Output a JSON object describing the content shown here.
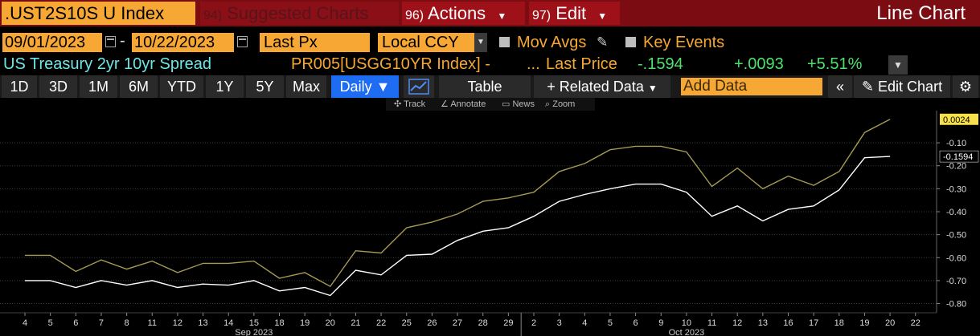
{
  "header": {
    "ticker": ".UST2S10S U Index",
    "suggested": {
      "num": "94)",
      "label": "Suggested Charts"
    },
    "actions": {
      "num": "96)",
      "label": "Actions"
    },
    "edit": {
      "num": "97)",
      "label": "Edit"
    },
    "chart_type": "Line Chart"
  },
  "range": {
    "start_date": "09/01/2023",
    "end_date": "10/22/2023",
    "field": "Last Px",
    "currency": "Local CCY",
    "mov_avgs": "Mov Avgs",
    "key_events": "Key Events"
  },
  "security": {
    "name": "US Treasury 2yr 10yr Spread",
    "series2": "PR005[USGG10YR Index] -",
    "ellipsis": "...",
    "last_price_label": "Last Price",
    "last_value": "-.1594",
    "change": "+.0093",
    "change_pct": "+5.51%"
  },
  "toolbar": {
    "periods": [
      "1D",
      "3D",
      "1M",
      "6M",
      "YTD",
      "1Y",
      "5Y",
      "Max"
    ],
    "frequency": "Daily",
    "table": "Table",
    "related_data": "Related Data",
    "add_data_placeholder": "Add Data",
    "edit_chart": "Edit Chart"
  },
  "mini_toolbar": {
    "track": "Track",
    "annotate": "Annotate",
    "news": "News",
    "zoom": "Zoom"
  },
  "colors": {
    "accent": "#f7a733",
    "cmdbar": "#7a0c12",
    "series_white": "#ffffff",
    "series_gold": "#a59a52",
    "positive": "#4de36b",
    "security_name": "#6ee6e6"
  },
  "chart_data": {
    "type": "line",
    "x": [
      "4",
      "5",
      "6",
      "7",
      "8",
      "11",
      "12",
      "13",
      "14",
      "15",
      "18",
      "19",
      "20",
      "21",
      "22",
      "25",
      "26",
      "27",
      "28",
      "29",
      "2",
      "3",
      "4",
      "5",
      "6",
      "9",
      "10",
      "11",
      "12",
      "13",
      "16",
      "17",
      "18",
      "19",
      "20"
    ],
    "x_axis_ticks": [
      "4",
      "5",
      "6",
      "7",
      "8",
      "11",
      "12",
      "13",
      "14",
      "15",
      "18",
      "19",
      "20",
      "21",
      "22",
      "25",
      "26",
      "27",
      "28",
      "29",
      "2",
      "3",
      "4",
      "5",
      "6",
      "9",
      "10",
      "11",
      "12",
      "13",
      "16",
      "17",
      "18",
      "19",
      "20",
      "22"
    ],
    "month_labels": [
      {
        "label": "Sep 2023",
        "at": "15"
      },
      {
        "label": "Oct 2023",
        "at": "10"
      }
    ],
    "ylim": [
      -0.84,
      0.04
    ],
    "y_ticks": [
      -0.1,
      -0.2,
      -0.3,
      -0.4,
      -0.5,
      -0.6,
      -0.7,
      -0.8
    ],
    "y_tick_labels": [
      "-0.10",
      "-0.20",
      "-0.30",
      "-0.40",
      "-0.50",
      "-0.60",
      "-0.70",
      "-0.80"
    ],
    "series": [
      {
        "color": "#ffffff",
        "last_label": "-0.1594",
        "values": [
          -0.7,
          -0.7,
          -0.73,
          -0.7,
          -0.72,
          -0.7,
          -0.73,
          -0.715,
          -0.72,
          -0.7,
          -0.745,
          -0.73,
          -0.765,
          -0.655,
          -0.675,
          -0.59,
          -0.585,
          -0.525,
          -0.485,
          -0.47,
          -0.42,
          -0.355,
          -0.325,
          -0.3,
          -0.28,
          -0.28,
          -0.315,
          -0.42,
          -0.375,
          -0.44,
          -0.39,
          -0.375,
          -0.305,
          -0.165,
          -0.1594
        ]
      },
      {
        "color": "#a59a52",
        "last_label": "0.0024",
        "values": [
          -0.59,
          -0.59,
          -0.66,
          -0.61,
          -0.65,
          -0.615,
          -0.665,
          -0.625,
          -0.625,
          -0.615,
          -0.69,
          -0.665,
          -0.725,
          -0.57,
          -0.58,
          -0.47,
          -0.445,
          -0.41,
          -0.355,
          -0.34,
          -0.315,
          -0.225,
          -0.19,
          -0.13,
          -0.115,
          -0.115,
          -0.14,
          -0.29,
          -0.21,
          -0.3,
          -0.245,
          -0.285,
          -0.225,
          -0.055,
          0.0024
        ]
      }
    ],
    "grid": true
  }
}
